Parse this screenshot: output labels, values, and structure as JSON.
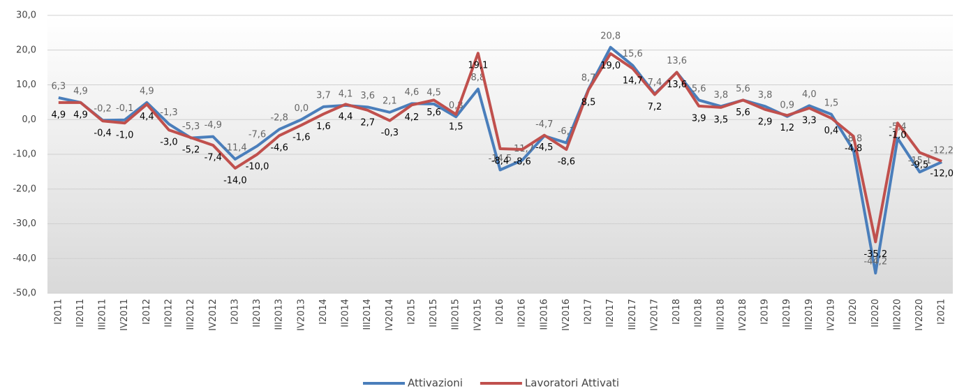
{
  "chart_data": {
    "type": "line",
    "categories": [
      "I2011",
      "II2011",
      "III2011",
      "IV2011",
      "I2012",
      "II2012",
      "III2012",
      "IV2012",
      "I2013",
      "II2013",
      "III2013",
      "IV2013",
      "I2014",
      "II2014",
      "III2014",
      "IV2014",
      "I2015",
      "II2015",
      "III2015",
      "IV2015",
      "I2016",
      "II2016",
      "III2016",
      "IV2016",
      "I2017",
      "II2017",
      "III2017",
      "IV2017",
      "I2018",
      "II2018",
      "III2018",
      "IV2018",
      "I2019",
      "II2019",
      "III2019",
      "IV2019",
      "I2020",
      "II2020",
      "III2020",
      "IV2020",
      "I2021"
    ],
    "series": [
      {
        "name": "Attivazioni",
        "color": "#4a7ebb",
        "label_color": "#666666",
        "values": [
          6.3,
          4.9,
          -0.2,
          -0.1,
          4.9,
          -1.3,
          -5.3,
          -4.9,
          -11.4,
          -7.6,
          -2.8,
          0.0,
          3.7,
          4.1,
          3.6,
          2.1,
          4.6,
          4.5,
          0.8,
          8.8,
          -14.5,
          -11.7,
          -4.7,
          -6.7,
          8.7,
          20.8,
          15.6,
          7.4,
          13.6,
          5.6,
          3.8,
          5.6,
          3.8,
          0.9,
          4.0,
          1.5,
          -8.8,
          -44.2,
          -5.4,
          -15.1,
          -12.2
        ],
        "value_labels": [
          "6,3",
          "4,9",
          "-0,2",
          "-0,1",
          "4,9",
          "-1,3",
          "-5,3",
          "-4,9",
          "-11,4",
          "-7,6",
          "-2,8",
          "0,0",
          "3,7",
          "4,1",
          "3,6",
          "2,1",
          "4,6",
          "4,5",
          "0,8",
          "8,8",
          "-14,5",
          "-11,7",
          "-4,7",
          "-6,7",
          "8,7",
          "20,8",
          "15,6",
          "7,4",
          "13,6",
          "5,6",
          "3,8",
          "5,6",
          "3,8",
          "0,9",
          "4,0",
          "1,5",
          "-8,8",
          "-44,2",
          "-5,4",
          "-15,1",
          "-12,2"
        ]
      },
      {
        "name": "Lavoratori Attivati",
        "color": "#c0504d",
        "label_color": "#000000",
        "values": [
          4.9,
          4.9,
          -0.4,
          -1.0,
          4.4,
          -3.0,
          -5.2,
          -7.4,
          -14.0,
          -10.0,
          -4.6,
          -1.6,
          1.6,
          4.4,
          2.7,
          -0.3,
          4.2,
          5.6,
          1.5,
          19.1,
          -8.4,
          -8.6,
          -4.5,
          -8.6,
          8.5,
          19.0,
          14.7,
          7.2,
          13.6,
          3.9,
          3.5,
          5.6,
          2.9,
          1.2,
          3.3,
          0.4,
          -4.8,
          -35.2,
          -1.0,
          -9.5,
          -12.0
        ],
        "value_labels": [
          "4,9",
          "4,9",
          "-0,4",
          "-1,0",
          "4,4",
          "-3,0",
          "-5,2",
          "-7,4",
          "-14,0",
          "-10,0",
          "-4,6",
          "-1,6",
          "1,6",
          "4,4",
          "2,7",
          "-0,3",
          "4,2",
          "5,6",
          "1,5",
          "19,1",
          "-8,4",
          "-8,6",
          "-4,5",
          "-8,6",
          "8,5",
          "19,0",
          "14,7",
          "7,2",
          "13,6",
          "3,9",
          "3,5",
          "5,6",
          "2,9",
          "1,2",
          "3,3",
          "0,4",
          "-4,8",
          "-35,2",
          "-1,0",
          "-9,5",
          "-12,0"
        ]
      }
    ],
    "ylim": [
      -50,
      30
    ],
    "yticks": [
      {
        "value": -50,
        "label": "-50,0"
      },
      {
        "value": -40,
        "label": "-40,0"
      },
      {
        "value": -30,
        "label": "-30,0"
      },
      {
        "value": -20,
        "label": "-20,0"
      },
      {
        "value": -10,
        "label": "-10,0"
      },
      {
        "value": 0,
        "label": "0,0"
      },
      {
        "value": 10,
        "label": "10,0"
      },
      {
        "value": 20,
        "label": "20,0"
      },
      {
        "value": 30,
        "label": "30,0"
      }
    ],
    "grid": true,
    "legend": "bottom"
  }
}
